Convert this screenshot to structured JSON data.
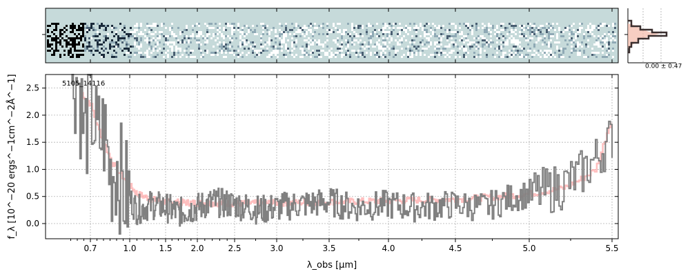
{
  "figure": {
    "object_label": "5105_14116",
    "ylabel": "f_λ [10^−20 ergs^−1cm^−2Å^−1]",
    "xlabel": "λ_obs [μm]",
    "hist_label": "0.00 ± 0.47"
  },
  "chart_data": {
    "type": "line",
    "xlim": [
      0.5,
      5.52
    ],
    "ylim": [
      -0.28,
      2.75
    ],
    "xscale": "custom (non-linear, compressed toward long wavelengths)",
    "x_ticks": [
      0.7,
      1.0,
      1.5,
      2.0,
      2.5,
      3.0,
      3.5,
      4.0,
      4.5,
      5.0,
      5.5
    ],
    "x_tick_labels": [
      "0.7",
      "1.0",
      "1.5",
      "2.0",
      "2.5",
      "3.0",
      "3.5",
      "4.0",
      "4.5",
      "5.0",
      "5.5"
    ],
    "y_ticks": [
      0.0,
      0.5,
      1.0,
      1.5,
      2.0,
      2.5
    ],
    "y_tick_labels": [
      "0.0",
      "0.5",
      "1.0",
      "1.5",
      "2.0",
      "2.5"
    ],
    "grid": true,
    "series": [
      {
        "role": "flux",
        "color": "#808080",
        "x": [
          0.6,
          0.65,
          0.7,
          0.75,
          0.8,
          0.85,
          0.9,
          0.95,
          1.0,
          1.1,
          1.2,
          1.3,
          1.5,
          1.7,
          2.0,
          2.2,
          2.5,
          2.8,
          3.0,
          3.2,
          3.5,
          3.7,
          4.0,
          4.2,
          4.5,
          4.7,
          4.9,
          5.0,
          5.1,
          5.2,
          5.3,
          5.4,
          5.5
        ],
        "y": [
          2.7,
          1.6,
          2.2,
          1.5,
          1.7,
          0.9,
          1.1,
          0.6,
          0.45,
          0.25,
          0.3,
          0.35,
          0.3,
          0.2,
          0.3,
          0.4,
          0.35,
          0.25,
          0.3,
          0.35,
          0.4,
          0.3,
          0.35,
          0.3,
          0.35,
          0.3,
          0.5,
          0.55,
          0.6,
          0.7,
          0.9,
          1.2,
          1.6
        ]
      },
      {
        "role": "model",
        "color": "#ff9999",
        "x": [
          0.6,
          0.7,
          0.75,
          0.8,
          0.85,
          0.9,
          0.95,
          1.0,
          1.1,
          1.3,
          1.5,
          2.0,
          2.5,
          3.0,
          3.5,
          4.0,
          4.5,
          4.8,
          5.0,
          5.1,
          5.2,
          5.3,
          5.4,
          5.5
        ],
        "y": [
          2.5,
          2.2,
          1.8,
          1.5,
          1.2,
          1.0,
          0.85,
          0.7,
          0.55,
          0.45,
          0.4,
          0.38,
          0.37,
          0.38,
          0.4,
          0.42,
          0.45,
          0.5,
          0.55,
          0.6,
          0.65,
          0.8,
          1.0,
          2.0
        ]
      }
    ],
    "colors": {
      "flux": "#808080",
      "model": "#ffaaaa",
      "spectrum_2d_background": "#c6dada",
      "histogram_data": "#3a2f2f",
      "histogram_model": "#f4b9a8"
    }
  }
}
